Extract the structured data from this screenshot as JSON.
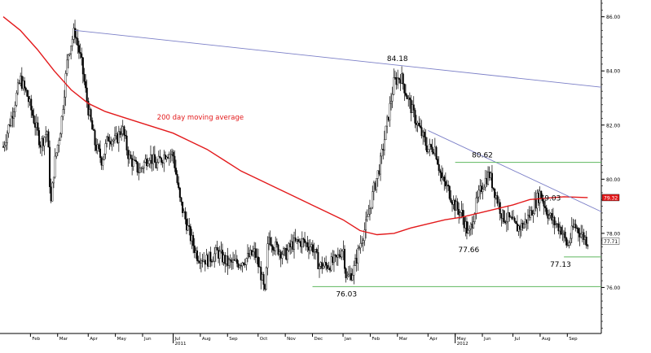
{
  "chart_data": {
    "type": "candlestick",
    "y_axis_position": "right",
    "ylim": [
      74.3,
      86.5
    ],
    "y_ticks": [
      "86.00",
      "84.00",
      "82.00",
      "80.00",
      "78.00",
      "76.00"
    ],
    "x_range": [
      2011.0,
      2012.76
    ],
    "month_labels": [
      {
        "label": "Feb",
        "x": 2011.08
      },
      {
        "label": "Mar",
        "x": 2011.16
      },
      {
        "label": "Apr",
        "x": 2011.25
      },
      {
        "label": "May",
        "x": 2011.33
      },
      {
        "label": "Jun",
        "x": 2011.41
      },
      {
        "label": "Jul",
        "x": 2011.5
      },
      {
        "label": "Aug",
        "x": 2011.58
      },
      {
        "label": "Sep",
        "x": 2011.66
      },
      {
        "label": "Oct",
        "x": 2011.75
      },
      {
        "label": "Nov",
        "x": 2011.83
      },
      {
        "label": "Dec",
        "x": 2011.91
      },
      {
        "label": "Jan",
        "x": 2012.0
      },
      {
        "label": "Feb",
        "x": 2012.08
      },
      {
        "label": "Mar",
        "x": 2012.16
      },
      {
        "label": "Apr",
        "x": 2012.25
      },
      {
        "label": "May",
        "x": 2012.33
      },
      {
        "label": "Jun",
        "x": 2012.41
      },
      {
        "label": "Jul",
        "x": 2012.5
      },
      {
        "label": "Aug",
        "x": 2012.58
      },
      {
        "label": "Sep",
        "x": 2012.66
      }
    ],
    "year_labels": [
      {
        "label": "2011",
        "x": 2011.5
      },
      {
        "label": "2012",
        "x": 2012.33
      }
    ],
    "price_path": [
      [
        2011.0,
        81.2
      ],
      [
        2011.03,
        82.6
      ],
      [
        2011.05,
        83.7
      ],
      [
        2011.07,
        83.1
      ],
      [
        2011.09,
        82.2
      ],
      [
        2011.11,
        81.3
      ],
      [
        2011.13,
        81.8
      ],
      [
        2011.14,
        79.0
      ],
      [
        2011.15,
        80.5
      ],
      [
        2011.17,
        82.0
      ],
      [
        2011.19,
        84.6
      ],
      [
        2011.21,
        85.5
      ],
      [
        2011.23,
        84.3
      ],
      [
        2011.25,
        82.6
      ],
      [
        2011.27,
        81.3
      ],
      [
        2011.29,
        80.7
      ],
      [
        2011.31,
        81.6
      ],
      [
        2011.33,
        81.4
      ],
      [
        2011.35,
        81.9
      ],
      [
        2011.37,
        80.8
      ],
      [
        2011.4,
        80.3
      ],
      [
        2011.43,
        80.9
      ],
      [
        2011.45,
        80.5
      ],
      [
        2011.48,
        81.0
      ],
      [
        2011.5,
        80.9
      ],
      [
        2011.52,
        79.2
      ],
      [
        2011.55,
        77.9
      ],
      [
        2011.57,
        77.2
      ],
      [
        2011.6,
        77.0
      ],
      [
        2011.63,
        77.3
      ],
      [
        2011.66,
        76.9
      ],
      [
        2011.69,
        76.9
      ],
      [
        2011.72,
        77.1
      ],
      [
        2011.74,
        77.3
      ],
      [
        2011.76,
        76.4
      ],
      [
        2011.77,
        75.7
      ],
      [
        2011.78,
        77.9
      ],
      [
        2011.8,
        77.5
      ],
      [
        2011.83,
        77.2
      ],
      [
        2011.85,
        77.6
      ],
      [
        2011.88,
        77.7
      ],
      [
        2011.91,
        77.5
      ],
      [
        2011.93,
        76.8
      ],
      [
        2011.95,
        76.8
      ],
      [
        2011.98,
        77.0
      ],
      [
        2012.0,
        77.5
      ],
      [
        2012.01,
        76.3
      ],
      [
        2012.03,
        76.6
      ],
      [
        2012.05,
        77.6
      ],
      [
        2012.07,
        78.4
      ],
      [
        2012.09,
        79.6
      ],
      [
        2012.11,
        80.6
      ],
      [
        2012.13,
        82.1
      ],
      [
        2012.15,
        83.6
      ],
      [
        2012.17,
        83.8
      ],
      [
        2012.19,
        83.0
      ],
      [
        2012.21,
        82.3
      ],
      [
        2012.23,
        81.7
      ],
      [
        2012.25,
        81.1
      ],
      [
        2012.27,
        81.2
      ],
      [
        2012.29,
        80.0
      ],
      [
        2012.31,
        79.6
      ],
      [
        2012.33,
        79.0
      ],
      [
        2012.35,
        78.7
      ],
      [
        2012.37,
        77.9
      ],
      [
        2012.39,
        79.0
      ],
      [
        2012.41,
        79.8
      ],
      [
        2012.43,
        80.2
      ],
      [
        2012.45,
        79.4
      ],
      [
        2012.47,
        78.6
      ],
      [
        2012.49,
        78.5
      ],
      [
        2012.51,
        78.2
      ],
      [
        2012.53,
        78.3
      ],
      [
        2012.55,
        78.7
      ],
      [
        2012.58,
        79.5
      ],
      [
        2012.6,
        78.8
      ],
      [
        2012.62,
        78.4
      ],
      [
        2012.64,
        78.2
      ],
      [
        2012.65,
        77.9
      ],
      [
        2012.66,
        77.5
      ],
      [
        2012.68,
        78.3
      ],
      [
        2012.7,
        78.0
      ],
      [
        2012.72,
        77.7
      ]
    ],
    "moving_average": {
      "label": "200 day moving average",
      "color": "#e31a1c",
      "points": [
        [
          2011.0,
          86.0
        ],
        [
          2011.05,
          85.5
        ],
        [
          2011.1,
          84.8
        ],
        [
          2011.15,
          84.0
        ],
        [
          2011.2,
          83.3
        ],
        [
          2011.25,
          82.8
        ],
        [
          2011.3,
          82.5
        ],
        [
          2011.35,
          82.3
        ],
        [
          2011.4,
          82.1
        ],
        [
          2011.45,
          81.9
        ],
        [
          2011.5,
          81.7
        ],
        [
          2011.55,
          81.4
        ],
        [
          2011.6,
          81.1
        ],
        [
          2011.65,
          80.7
        ],
        [
          2011.7,
          80.3
        ],
        [
          2011.75,
          80.0
        ],
        [
          2011.8,
          79.7
        ],
        [
          2011.85,
          79.4
        ],
        [
          2011.9,
          79.1
        ],
        [
          2011.95,
          78.8
        ],
        [
          2012.0,
          78.5
        ],
        [
          2012.05,
          78.1
        ],
        [
          2012.1,
          77.95
        ],
        [
          2012.15,
          78.0
        ],
        [
          2012.2,
          78.2
        ],
        [
          2012.25,
          78.35
        ],
        [
          2012.3,
          78.5
        ],
        [
          2012.35,
          78.6
        ],
        [
          2012.4,
          78.75
        ],
        [
          2012.45,
          78.9
        ],
        [
          2012.5,
          79.05
        ],
        [
          2012.55,
          79.25
        ],
        [
          2012.6,
          79.3
        ],
        [
          2012.65,
          79.35
        ],
        [
          2012.72,
          79.32
        ]
      ]
    },
    "trend_lines": [
      {
        "name": "long-term-resistance",
        "color": "#7b7fc7",
        "from": [
          2011.21,
          85.5
        ],
        "to": [
          2012.76,
          83.4
        ]
      },
      {
        "name": "short-term-resistance",
        "color": "#7b7fc7",
        "from": [
          2012.25,
          81.8
        ],
        "to": [
          2012.76,
          78.8
        ]
      }
    ],
    "horizontal_lines": [
      {
        "name": "level-76-line",
        "color": "#5fb85f",
        "y": 76.03,
        "from": 2011.91,
        "to": 2012.76
      },
      {
        "name": "level-80.62-line",
        "color": "#5fb85f",
        "y": 80.62,
        "from": 2012.33,
        "to": 2012.76
      },
      {
        "name": "level-77.13-line",
        "color": "#5fb85f",
        "y": 77.13,
        "from": 2012.65,
        "to": 2012.76
      }
    ],
    "annotations": [
      {
        "text": "84.18",
        "x": 2012.16,
        "y": 84.18,
        "position": "above"
      },
      {
        "text": "80.62",
        "x": 2012.41,
        "y": 80.62,
        "position": "above"
      },
      {
        "text": "79.03",
        "x": 2012.61,
        "y": 79.03,
        "position": "above"
      },
      {
        "text": "77.66",
        "x": 2012.37,
        "y": 77.66,
        "position": "below"
      },
      {
        "text": "77.13",
        "x": 2012.64,
        "y": 77.13,
        "position": "below"
      },
      {
        "text": "76.03",
        "x": 2012.01,
        "y": 76.03,
        "position": "below"
      }
    ],
    "ma_label_position": {
      "x": 2011.58,
      "y": 82.2
    },
    "price_flags": [
      {
        "text": "79.32",
        "y": 79.32,
        "background": "#e31a1c",
        "color": "#ffffff"
      },
      {
        "text": "77.71",
        "y": 77.71,
        "background": "#ffffff",
        "color": "#000000"
      }
    ]
  }
}
